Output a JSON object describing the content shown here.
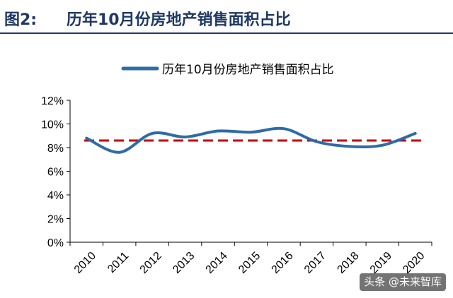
{
  "header": {
    "figure_label": "图2:",
    "title": "历年10月份房地产销售面积占比"
  },
  "watermark": "头条 @未来智库",
  "colors": {
    "line": "#2e6ba8",
    "average_line": "#c00000",
    "title": "#1f3864",
    "axis": "#000000"
  },
  "chart_data": {
    "type": "line",
    "x": [
      "2010",
      "2011",
      "2012",
      "2013",
      "2014",
      "2015",
      "2016",
      "2017",
      "2018",
      "2019",
      "2020"
    ],
    "series": [
      {
        "name": "历年10月份房地产销售面积占比",
        "values": [
          8.8,
          7.6,
          9.2,
          8.9,
          9.4,
          9.3,
          9.6,
          8.5,
          8.1,
          8.2,
          9.2
        ]
      }
    ],
    "reference_line": {
      "value": 8.6,
      "style": "dashed"
    },
    "yticks": [
      "0%",
      "2%",
      "4%",
      "6%",
      "8%",
      "10%",
      "12%"
    ],
    "ylim": [
      0,
      12
    ],
    "legend_position": "top",
    "grid": false,
    "xlabel": "",
    "ylabel": ""
  }
}
